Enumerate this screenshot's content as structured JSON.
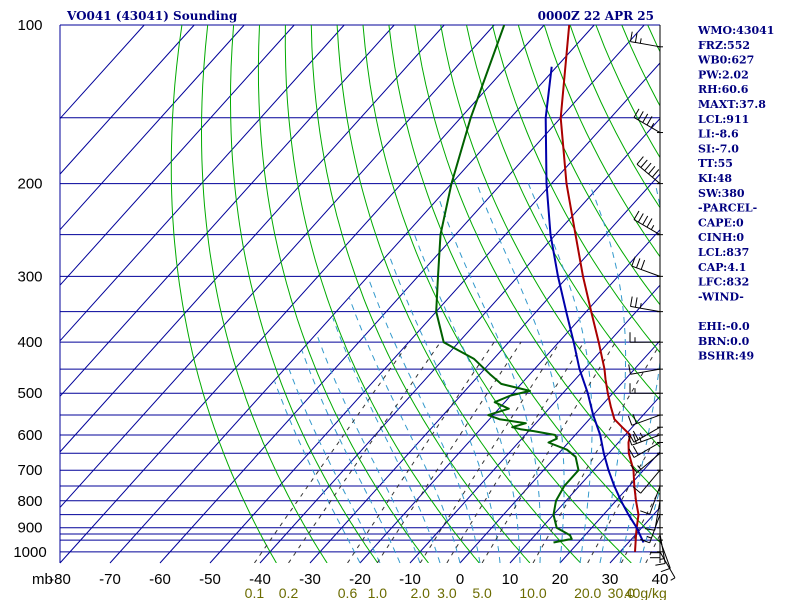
{
  "chart_data": {
    "type": "line",
    "title": "VO041 (43041) Sounding",
    "time_label": "0000Z 22 APR 25",
    "y_axis_unit": "mb",
    "y_scale": "log",
    "ylim": [
      1050,
      100
    ],
    "xlim": [
      -80,
      40
    ],
    "pressure_ticks": [
      "100",
      "200",
      "300",
      "400",
      "500",
      "600",
      "700",
      "800",
      "900",
      "1000"
    ],
    "temperature_ticks": [
      "-80",
      "-70",
      "-60",
      "-50",
      "-40",
      "-30",
      "-20",
      "-10",
      "0",
      "10",
      "20",
      "30",
      "40"
    ],
    "mixing_ratio_ticks": [
      "0.1",
      "0.2",
      "0.6",
      "1.0",
      "2.0",
      "3.0",
      "5.0",
      "10.0",
      "20.0",
      "30.0",
      "40g/kg"
    ],
    "isobar_levels": [
      100,
      150,
      200,
      250,
      300,
      350,
      400,
      450,
      500,
      550,
      600,
      650,
      700,
      750,
      800,
      850,
      900,
      925,
      950,
      1000
    ],
    "series": [
      {
        "color": "#aa0000",
        "points": [
          [
            1000,
            33
          ],
          [
            925,
            30
          ],
          [
            900,
            29
          ],
          [
            850,
            27
          ],
          [
            800,
            24
          ],
          [
            750,
            21
          ],
          [
            700,
            18
          ],
          [
            650,
            14
          ],
          [
            620,
            12
          ],
          [
            600,
            11
          ],
          [
            580,
            8
          ],
          [
            560,
            5
          ],
          [
            530,
            2
          ],
          [
            500,
            -1
          ],
          [
            470,
            -4
          ],
          [
            450,
            -6
          ],
          [
            400,
            -12
          ],
          [
            350,
            -19
          ],
          [
            300,
            -27
          ],
          [
            250,
            -36
          ],
          [
            200,
            -47
          ],
          [
            150,
            -60
          ],
          [
            100,
            -75
          ]
        ]
      },
      {
        "color": "#006000",
        "points": [
          [
            960,
            15
          ],
          [
            945,
            18
          ],
          [
            930,
            17
          ],
          [
            900,
            13
          ],
          [
            850,
            10
          ],
          [
            800,
            8
          ],
          [
            750,
            7
          ],
          [
            700,
            7
          ],
          [
            660,
            4
          ],
          [
            640,
            1
          ],
          [
            620,
            -4
          ],
          [
            610,
            -3
          ],
          [
            600,
            -4
          ],
          [
            590,
            -9
          ],
          [
            585,
            -12
          ],
          [
            580,
            -14
          ],
          [
            570,
            -12
          ],
          [
            565,
            -15
          ],
          [
            560,
            -18
          ],
          [
            550,
            -21
          ],
          [
            535,
            -18
          ],
          [
            520,
            -22
          ],
          [
            505,
            -20
          ],
          [
            495,
            -17
          ],
          [
            480,
            -24
          ],
          [
            460,
            -28
          ],
          [
            430,
            -34
          ],
          [
            410,
            -40
          ],
          [
            400,
            -43
          ],
          [
            350,
            -50
          ],
          [
            300,
            -56
          ],
          [
            250,
            -63
          ],
          [
            200,
            -70
          ],
          [
            150,
            -78
          ],
          [
            100,
            -88
          ]
        ]
      },
      {
        "color": "#0000aa",
        "points": [
          [
            960,
            33
          ],
          [
            900,
            29
          ],
          [
            850,
            25
          ],
          [
            800,
            21
          ],
          [
            750,
            17
          ],
          [
            700,
            13
          ],
          [
            650,
            9
          ],
          [
            600,
            5
          ],
          [
            550,
            0
          ],
          [
            500,
            -5
          ],
          [
            450,
            -11
          ],
          [
            400,
            -17
          ],
          [
            350,
            -24
          ],
          [
            300,
            -32
          ],
          [
            250,
            -41
          ],
          [
            200,
            -51
          ],
          [
            150,
            -63
          ],
          [
            120,
            -71
          ]
        ]
      }
    ],
    "wind_barbs": [
      {
        "p": 110,
        "dir": 280,
        "spd": 25
      },
      {
        "p": 160,
        "dir": 300,
        "spd": 45
      },
      {
        "p": 200,
        "dir": 310,
        "spd": 50
      },
      {
        "p": 250,
        "dir": 300,
        "spd": 45
      },
      {
        "p": 300,
        "dir": 290,
        "spd": 30
      },
      {
        "p": 350,
        "dir": 280,
        "spd": 25
      },
      {
        "p": 400,
        "dir": 270,
        "spd": 15
      },
      {
        "p": 450,
        "dir": 260,
        "spd": 10
      },
      {
        "p": 500,
        "dir": 270,
        "spd": 15
      },
      {
        "p": 550,
        "dir": 250,
        "spd": 20
      },
      {
        "p": 580,
        "dir": 240,
        "spd": 25
      },
      {
        "p": 600,
        "dir": 250,
        "spd": 25
      },
      {
        "p": 620,
        "dir": 240,
        "spd": 20
      },
      {
        "p": 650,
        "dir": 230,
        "spd": 15
      },
      {
        "p": 700,
        "dir": 220,
        "spd": 10
      },
      {
        "p": 750,
        "dir": 200,
        "spd": 10
      },
      {
        "p": 800,
        "dir": 190,
        "spd": 10
      },
      {
        "p": 850,
        "dir": 200,
        "spd": 15
      },
      {
        "p": 900,
        "dir": 180,
        "spd": 20
      },
      {
        "p": 925,
        "dir": 170,
        "spd": 15
      },
      {
        "p": 950,
        "dir": 160,
        "spd": 10
      },
      {
        "p": 1000,
        "dir": 150,
        "spd": 5
      }
    ],
    "indices": [
      "WMO:43041",
      "FRZ:552",
      "WB0:627",
      "PW:2.02",
      "RH:60.6",
      "MAXT:37.8",
      "LCL:911",
      "LI:-8.6",
      "SI:-7.0",
      "TT:55",
      "KI:48",
      "SW:380",
      "-PARCEL-",
      "CAPE:0",
      "CINH:0",
      "LCL:837",
      "CAP:4.1",
      "LFC:832",
      "-WIND-",
      "",
      "EHI:-0.0",
      "BRN:0.0",
      "BSHR:49"
    ],
    "colors": {
      "grid": "#000099",
      "dry_adiabat": "#00aa00",
      "moist_adiabat": "#3399cc",
      "mixing_ratio": "#333333",
      "label": "#000080",
      "mixing_label": "#6b6b00"
    }
  }
}
